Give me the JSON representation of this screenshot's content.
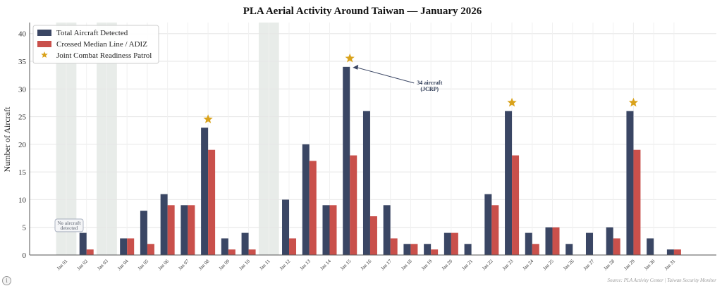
{
  "title": "PLA Aerial Activity Around Taiwan — January 2026",
  "source": "Source: PLA Activity Center | Taiwan Security Monitor",
  "info_icon": "i",
  "colors": {
    "total": "#3a4664",
    "crossed": "#c9504b",
    "star": "#d9a21b",
    "shade": "#e8ece9",
    "grid": "#e6e6e6"
  },
  "chart_data": {
    "type": "bar",
    "title": "PLA Aerial Activity Around Taiwan — January 2026",
    "xlabel": "",
    "ylabel": "Number of Aircraft",
    "ylim": [
      0,
      42
    ],
    "yticks": [
      0,
      5,
      10,
      15,
      20,
      25,
      30,
      35,
      40
    ],
    "grid": true,
    "legend_position": "top-left",
    "categories": [
      "Jan 01",
      "Jan 02",
      "Jan 03",
      "Jan 04",
      "Jan 05",
      "Jan 06",
      "Jan 07",
      "Jan 08",
      "Jan 09",
      "Jan 10",
      "Jan 11",
      "Jan 12",
      "Jan 13",
      "Jan 14",
      "Jan 15",
      "Jan 16",
      "Jan 17",
      "Jan 18",
      "Jan 19",
      "Jan 20",
      "Jan 21",
      "Jan 22",
      "Jan 23",
      "Jan 24",
      "Jan 25",
      "Jan 26",
      "Jan 27",
      "Jan 28",
      "Jan 29",
      "Jan 30",
      "Jan 31"
    ],
    "series": [
      {
        "name": "Total Aircraft Detected",
        "values": [
          0,
          4,
          0,
          3,
          8,
          11,
          9,
          23,
          3,
          4,
          0,
          10,
          20,
          9,
          34,
          26,
          9,
          2,
          2,
          4,
          2,
          11,
          26,
          4,
          5,
          2,
          4,
          5,
          26,
          3,
          1
        ]
      },
      {
        "name": "Crossed Median Line / ADIZ",
        "values": [
          0,
          1,
          0,
          3,
          2,
          9,
          9,
          19,
          1,
          1,
          0,
          3,
          17,
          9,
          18,
          7,
          3,
          2,
          1,
          4,
          0,
          9,
          18,
          2,
          5,
          0,
          0,
          3,
          19,
          0,
          1
        ]
      }
    ],
    "jcrp_marker": {
      "name": "Joint Combat Readiness Patrol",
      "days": [
        "Jan 08",
        "Jan 15",
        "Jan 23",
        "Jan 29"
      ]
    },
    "shaded_days": [
      "Jan 01",
      "Jan 03",
      "Jan 11"
    ],
    "annotations": [
      {
        "text_lines": [
          "34 aircraft",
          "(JCRP)"
        ],
        "target": "Jan 15",
        "value": 34
      },
      {
        "text_lines": [
          "No aircraft",
          "detected"
        ],
        "target": "Jan 01",
        "value": 0
      }
    ]
  }
}
